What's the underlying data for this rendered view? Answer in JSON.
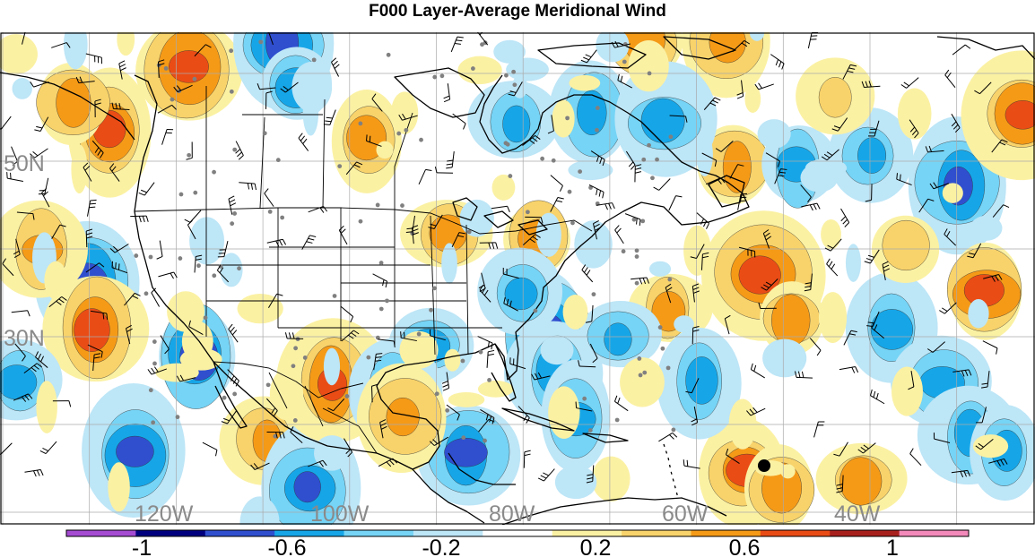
{
  "title": "F000 Layer-Average Meridional Wind",
  "latitude_labels": [
    "50N",
    "30N"
  ],
  "longitude_labels": [
    "120W",
    "100W",
    "80W",
    "60W",
    "40W"
  ],
  "colorbar": {
    "tick_labels": [
      "-1",
      "-0.6",
      "-0.2",
      "0.2",
      "0.6",
      "1"
    ],
    "bins": [
      {
        "color": "#a44bd2"
      },
      {
        "color": "#00007f"
      },
      {
        "color": "#2f4fcf"
      },
      {
        "color": "#16a6e8"
      },
      {
        "color": "#76d4f6"
      },
      {
        "color": "#bde6f7"
      },
      {
        "color": "#ffffff"
      },
      {
        "color": "#fbf1a3"
      },
      {
        "color": "#f8d36b"
      },
      {
        "color": "#f59a17"
      },
      {
        "color": "#ea4c16"
      },
      {
        "color": "#a8201c"
      },
      {
        "color": "#f289ba"
      }
    ]
  },
  "colors": {
    "positive_light": "#fbf1a3",
    "positive_mid": "#f8d36b",
    "positive_strong": "#f59a17",
    "positive_max": "#ea4c16",
    "negative_light": "#bde6f7",
    "negative_mid": "#76d4f6",
    "negative_strong": "#16a6e8",
    "negative_max": "#2f4fcf",
    "grid": "#aaaaaa",
    "coast": "#000000",
    "station": "#808080"
  }
}
